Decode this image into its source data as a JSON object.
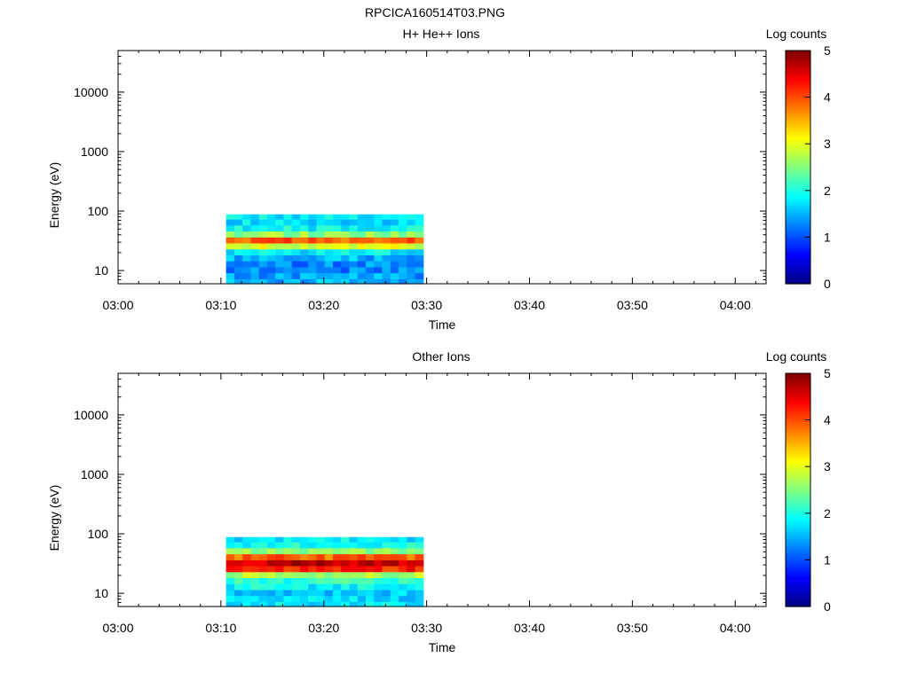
{
  "figure_title": "RPCICA160514T03.PNG",
  "chart_data": [
    {
      "type": "heatmap",
      "title": "H+ He++ Ions",
      "xlabel": "Time",
      "ylabel": "Energy (eV)",
      "x_ticks": [
        "03:00",
        "03:10",
        "03:20",
        "03:30",
        "03:40",
        "03:50",
        "04:00"
      ],
      "x_range": [
        "03:00",
        "04:03"
      ],
      "y_scale": "log",
      "y_ticks": [
        10,
        100,
        1000,
        10000
      ],
      "y_tick_labels": [
        "10",
        "100",
        "1000",
        "10000"
      ],
      "y_range": [
        6,
        50000
      ],
      "colorbar": {
        "label": "Log counts",
        "range": [
          0,
          5
        ],
        "ticks": [
          "0",
          "1",
          "2",
          "3",
          "4",
          "5"
        ]
      },
      "data_time_range": [
        "03:10:30",
        "03:29:40"
      ],
      "energy_bins_eV": [
        6.5,
        8.2,
        10.3,
        13,
        16.4,
        20.6,
        26,
        32.7,
        41.2,
        52,
        65.5,
        82.5
      ],
      "profile_log_counts": [
        1.5,
        1.4,
        1.3,
        1.3,
        1.5,
        1.8,
        3.0,
        3.9,
        2.6,
        1.9,
        1.7,
        1.8
      ],
      "grid": false,
      "legend": "colorbar-right"
    },
    {
      "type": "heatmap",
      "title": "Other Ions",
      "xlabel": "Time",
      "ylabel": "Energy (eV)",
      "x_ticks": [
        "03:00",
        "03:10",
        "03:20",
        "03:30",
        "03:40",
        "03:50",
        "04:00"
      ],
      "x_range": [
        "03:00",
        "04:03"
      ],
      "y_scale": "log",
      "y_ticks": [
        10,
        100,
        1000,
        10000
      ],
      "y_tick_labels": [
        "10",
        "100",
        "1000",
        "10000"
      ],
      "y_range": [
        6,
        50000
      ],
      "colorbar": {
        "label": "Log counts",
        "range": [
          0,
          5
        ],
        "ticks": [
          "0",
          "1",
          "2",
          "3",
          "4",
          "5"
        ]
      },
      "data_time_range": [
        "03:10:30",
        "03:29:40"
      ],
      "energy_bins_eV": [
        6.5,
        8.2,
        10.3,
        13,
        16.4,
        20.6,
        26,
        32.7,
        41.2,
        52,
        65.5,
        82.5
      ],
      "profile_log_counts": [
        1.8,
        1.7,
        1.6,
        1.9,
        2.1,
        2.7,
        4.2,
        4.7,
        3.9,
        2.6,
        2.0,
        1.8
      ],
      "grid": false,
      "legend": "colorbar-right"
    }
  ]
}
